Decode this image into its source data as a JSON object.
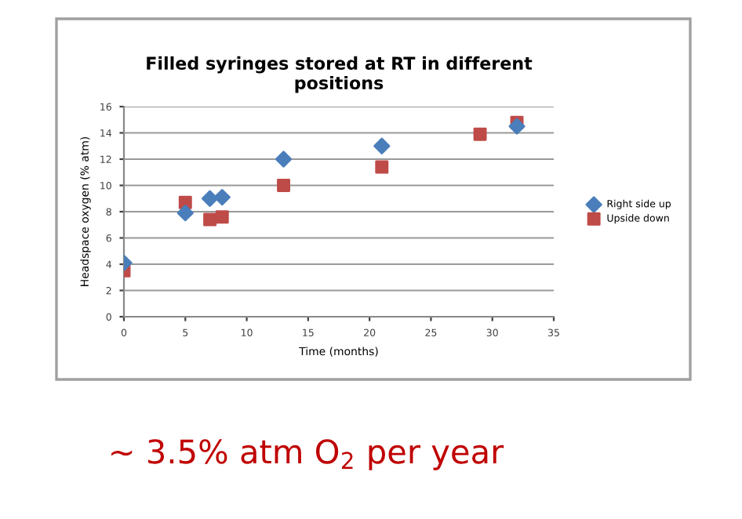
{
  "chart_data": {
    "type": "scatter",
    "title": "Filled syringes stored at RT in different positions",
    "xlabel": "Time (months)",
    "ylabel": "Headspace oxygen (% atm)",
    "x": [
      0,
      5,
      7,
      8,
      13,
      21,
      29,
      32
    ],
    "series": [
      {
        "name": "Right side up",
        "color": "#4a7ebb",
        "marker": "diamond",
        "values": [
          4.1,
          7.9,
          9,
          9.1,
          12,
          13,
          null,
          14.5
        ]
      },
      {
        "name": "Upside down",
        "color": "#be4b48",
        "marker": "square",
        "values": [
          3.5,
          8.7,
          7.4,
          7.6,
          10,
          11.4,
          13.9,
          14.8
        ]
      }
    ],
    "xlim": [
      0,
      35
    ],
    "xticks": [
      0,
      5,
      10,
      15,
      20,
      25,
      30,
      35
    ],
    "ylim": [
      0,
      16
    ],
    "yticks": [
      0,
      2,
      4,
      6,
      8,
      10,
      12,
      14,
      16
    ],
    "grid": "y",
    "legend": "right",
    "annotations": [
      "~ 3.5% atm O$_{2}$ per year"
    ]
  }
}
